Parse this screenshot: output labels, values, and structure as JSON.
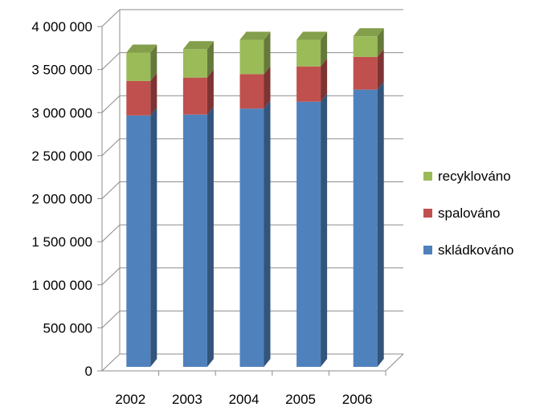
{
  "chart_data": {
    "type": "bar",
    "stacked": true,
    "three_d": true,
    "categories": [
      "2002",
      "2003",
      "2004",
      "2005",
      "2006"
    ],
    "series": [
      {
        "name": "skládkováno",
        "values": [
          2920000,
          2930000,
          3000000,
          3080000,
          3220000
        ],
        "color": "#4f81bd"
      },
      {
        "name": "spalováno",
        "values": [
          400000,
          430000,
          400000,
          410000,
          380000
        ],
        "color": "#c0504d"
      },
      {
        "name": "recyklováno",
        "values": [
          330000,
          330000,
          400000,
          310000,
          240000
        ],
        "color": "#9bbb59"
      }
    ],
    "legend_order": [
      "recyklováno",
      "spalováno",
      "skládkováno"
    ],
    "y_ticks": [
      0,
      500000,
      1000000,
      1500000,
      2000000,
      2500000,
      3000000,
      3500000,
      4000000
    ],
    "y_tick_labels": [
      "0",
      "500 000",
      "1 000 000",
      "1 500 000",
      "2 000 000",
      "2 500 000",
      "3 000 000",
      "3 500 000",
      "4 000 000"
    ],
    "ylim": [
      0,
      4000000
    ],
    "grid": true,
    "legend_position": "right",
    "title": "",
    "xlabel": "",
    "ylabel": ""
  }
}
